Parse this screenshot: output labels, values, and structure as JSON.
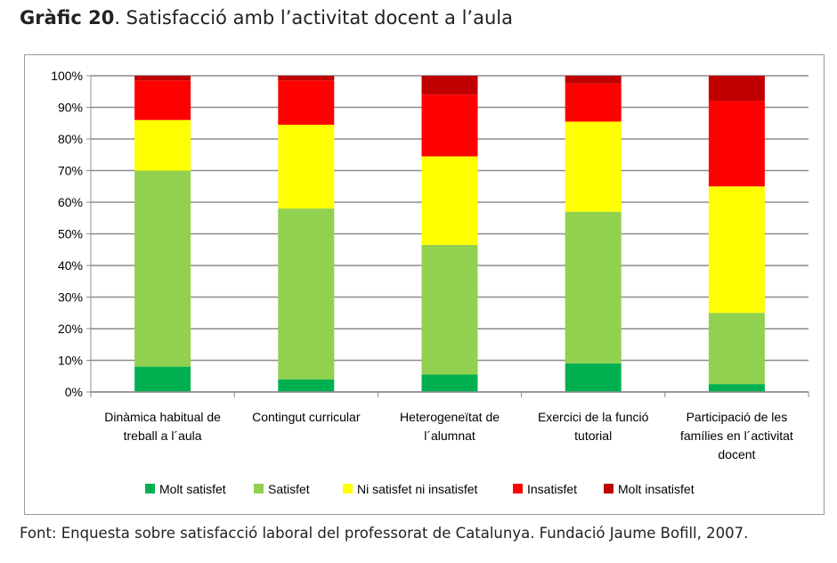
{
  "title": {
    "bold": "Gràfic 20",
    "rest": ". Satisfacció amb l’activitat docent a l’aula"
  },
  "source": "Font: Enquesta sobre satisfacció laboral del professorat de Catalunya. Fundació Jaume Bofill, 2007.",
  "chart_data": {
    "type": "bar",
    "stacked": true,
    "percent": true,
    "ylim": [
      0,
      100
    ],
    "y_ticks": [
      "0%",
      "10%",
      "20%",
      "30%",
      "40%",
      "50%",
      "60%",
      "70%",
      "80%",
      "90%",
      "100%"
    ],
    "grid": true,
    "legend_position": "bottom",
    "categories": [
      [
        "Dinàmica habitual de",
        "treball a l´aula"
      ],
      [
        "Contingut curricular"
      ],
      [
        "Heterogeneïtat de",
        "l´alumnat"
      ],
      [
        "Exercici de la funció",
        "tutorial"
      ],
      [
        "Participació de les",
        "famílies en l´activitat",
        "docent"
      ]
    ],
    "series": [
      {
        "name": "Molt satisfet",
        "color": "#00b050",
        "values": [
          8,
          4,
          5.5,
          9,
          2.5
        ]
      },
      {
        "name": "Satisfet",
        "color": "#92d050",
        "values": [
          62,
          54,
          41,
          48,
          22.5
        ]
      },
      {
        "name": "Ni satisfet ni insatisfet",
        "color": "#ffff00",
        "values": [
          16,
          26.5,
          28,
          28.5,
          40
        ]
      },
      {
        "name": "Insatisfet",
        "color": "#ff0000",
        "values": [
          12.5,
          14,
          19.5,
          12,
          27
        ]
      },
      {
        "name": "Molt insatisfet",
        "color": "#c00000",
        "values": [
          1.5,
          1.5,
          6,
          2.5,
          8
        ]
      }
    ]
  }
}
